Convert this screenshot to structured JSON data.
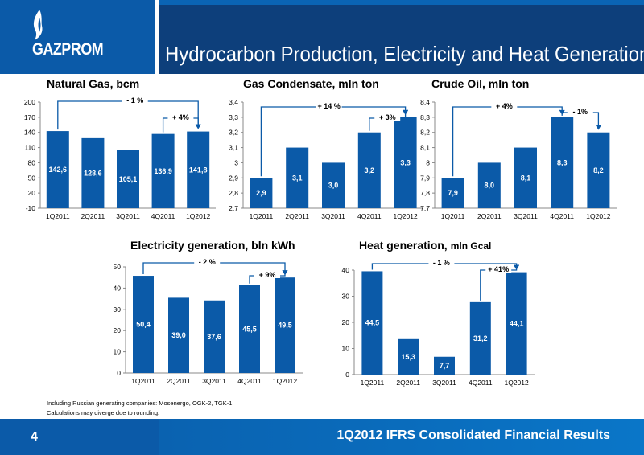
{
  "brand": {
    "name": "GAZPROM"
  },
  "title": "Hydrocarbon Production, Electricity and Heat Generation",
  "colors": {
    "bar": "#0b5aa8",
    "header": "#0d3f7b",
    "logo_bg": "#0b5aa8"
  },
  "footnotes": [
    "Including Russian generating companies: Mosenergo, OGK-2, TGK-1",
    "Calculations may diverge due to rounding."
  ],
  "footer": {
    "page": "4",
    "text": "1Q2012 IFRS Consolidated Financial Results"
  },
  "chart_data": [
    {
      "type": "bar",
      "title": "Natural Gas, bcm",
      "categories": [
        "1Q2011",
        "2Q2011",
        "3Q2011",
        "4Q2011",
        "1Q2012"
      ],
      "values": [
        142.6,
        128.6,
        105.1,
        136.9,
        141.8
      ],
      "value_labels": [
        "142,6",
        "128,6",
        "105,1",
        "136,9",
        "141,8"
      ],
      "yticks": [
        "-10",
        "20",
        "50",
        "80",
        "110",
        "140",
        "170",
        "200"
      ],
      "ylim": [
        -10,
        200
      ],
      "annotations": [
        "- 1 %",
        "+ 4%"
      ]
    },
    {
      "type": "bar",
      "title": "Gas Condensate, mln ton",
      "categories": [
        "1Q2011",
        "2Q2011",
        "3Q2011",
        "4Q2011",
        "1Q2012"
      ],
      "values": [
        2.9,
        3.1,
        3.0,
        3.2,
        3.3
      ],
      "value_labels": [
        "2,9",
        "3,1",
        "3,0",
        "3,2",
        "3,3"
      ],
      "yticks": [
        "2,7",
        "2,8",
        "2,9",
        "3",
        "3,1",
        "3,2",
        "3,3",
        "3,4"
      ],
      "ylim": [
        2.7,
        3.4
      ],
      "annotations": [
        "+ 14 %",
        "+ 3%"
      ]
    },
    {
      "type": "bar",
      "title": "Crude Oil, mln ton",
      "categories": [
        "1Q2011",
        "2Q2011",
        "3Q2011",
        "4Q2011",
        "1Q2012"
      ],
      "values": [
        7.9,
        8.0,
        8.1,
        8.3,
        8.2
      ],
      "value_labels": [
        "7,9",
        "8,0",
        "8,1",
        "8,3",
        "8,2"
      ],
      "yticks": [
        "7,7",
        "7,8",
        "7,9",
        "8",
        "8,1",
        "8,2",
        "8,3",
        "8,4"
      ],
      "ylim": [
        7.7,
        8.4
      ],
      "annotations": [
        "+ 4%",
        "- 1%"
      ]
    },
    {
      "type": "bar",
      "title": "Electricity generation, bln kWh",
      "categories": [
        "1Q2011",
        "2Q2011",
        "3Q2011",
        "4Q2011",
        "1Q2012"
      ],
      "values": [
        50.4,
        39.0,
        37.6,
        45.5,
        49.5
      ],
      "value_labels": [
        "50,4",
        "39,0",
        "37,6",
        "45,5",
        "49,5"
      ],
      "yticks": [
        "0",
        "10",
        "20",
        "30",
        "40",
        "50"
      ],
      "ylim": [
        0,
        55
      ],
      "annotations": [
        "- 2 %",
        "+ 9%"
      ]
    },
    {
      "type": "bar",
      "title": "Heat generation,",
      "title_unit": "mln Gcal",
      "categories": [
        "1Q2011",
        "2Q2011",
        "3Q2011",
        "4Q2011",
        "1Q2012"
      ],
      "values": [
        44.5,
        15.3,
        7.7,
        31.2,
        44.1
      ],
      "value_labels": [
        "44,5",
        "15,3",
        "7,7",
        "31,2",
        "44,1"
      ],
      "yticks": [
        "0",
        "10",
        "20",
        "30",
        "40"
      ],
      "ylim": [
        0,
        45
      ],
      "annotations": [
        "- 1 %",
        "+ 41%"
      ]
    }
  ]
}
